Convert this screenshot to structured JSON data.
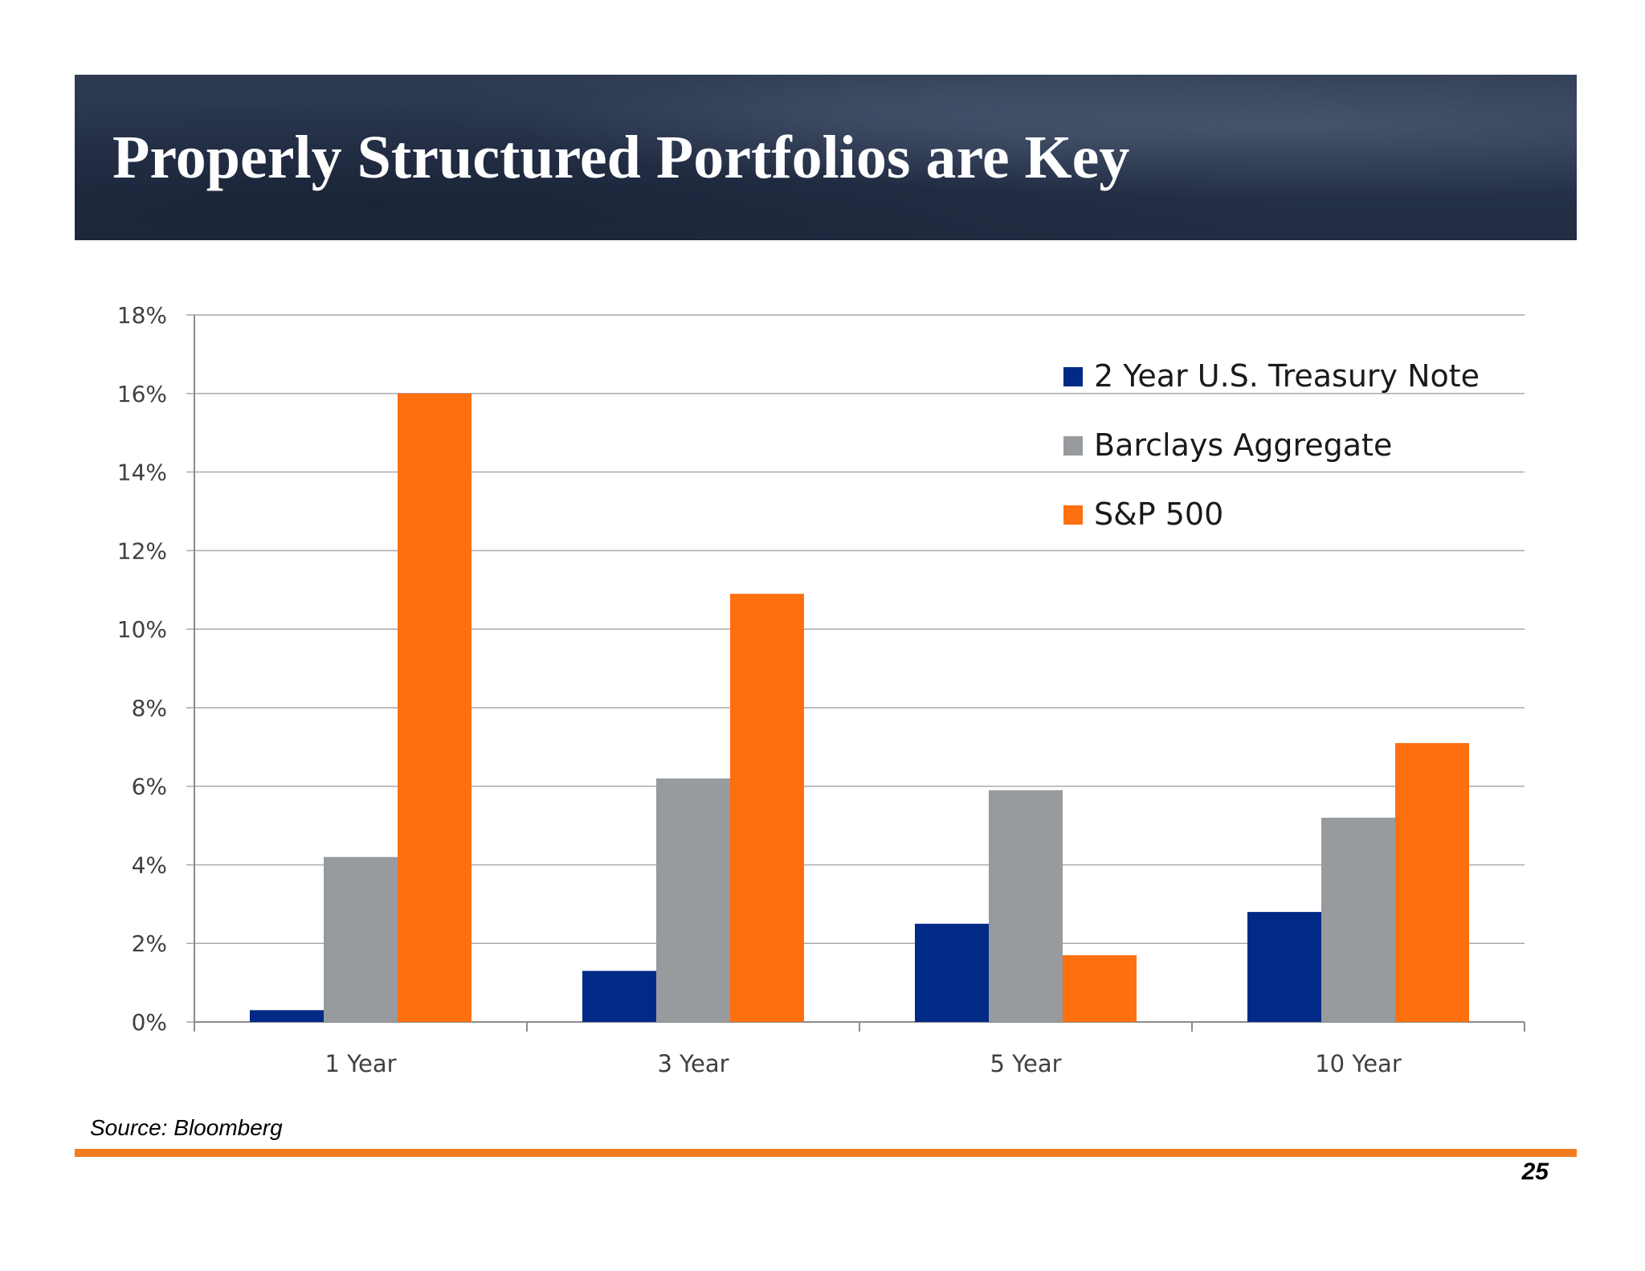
{
  "slide": {
    "title": "Properly Structured Portfolios are Key",
    "source": "Source: Bloomberg",
    "page_number": "25",
    "footer_rule_color": "#f47d20"
  },
  "chart_data": {
    "type": "bar",
    "categories": [
      "1 Year",
      "3 Year",
      "5 Year",
      "10 Year"
    ],
    "series": [
      {
        "name": "2 Year U.S. Treasury Note",
        "color": "#002a86",
        "values": [
          0.3,
          1.3,
          2.5,
          2.8
        ]
      },
      {
        "name": "Barclays Aggregate",
        "color": "#989b9e",
        "values": [
          4.2,
          6.2,
          5.9,
          5.2
        ]
      },
      {
        "name": "S&P 500",
        "color": "#fe6f10",
        "values": [
          16.0,
          10.9,
          1.7,
          7.1
        ]
      }
    ],
    "ylim": [
      0,
      18
    ],
    "yticks": [
      0,
      2,
      4,
      6,
      8,
      10,
      12,
      14,
      16,
      18
    ],
    "ytick_labels": [
      "0%",
      "2%",
      "4%",
      "6%",
      "8%",
      "10%",
      "12%",
      "14%",
      "16%",
      "18%"
    ],
    "grid": true,
    "legend_position": "top-right",
    "xlabel": "",
    "ylabel": "",
    "title": ""
  }
}
